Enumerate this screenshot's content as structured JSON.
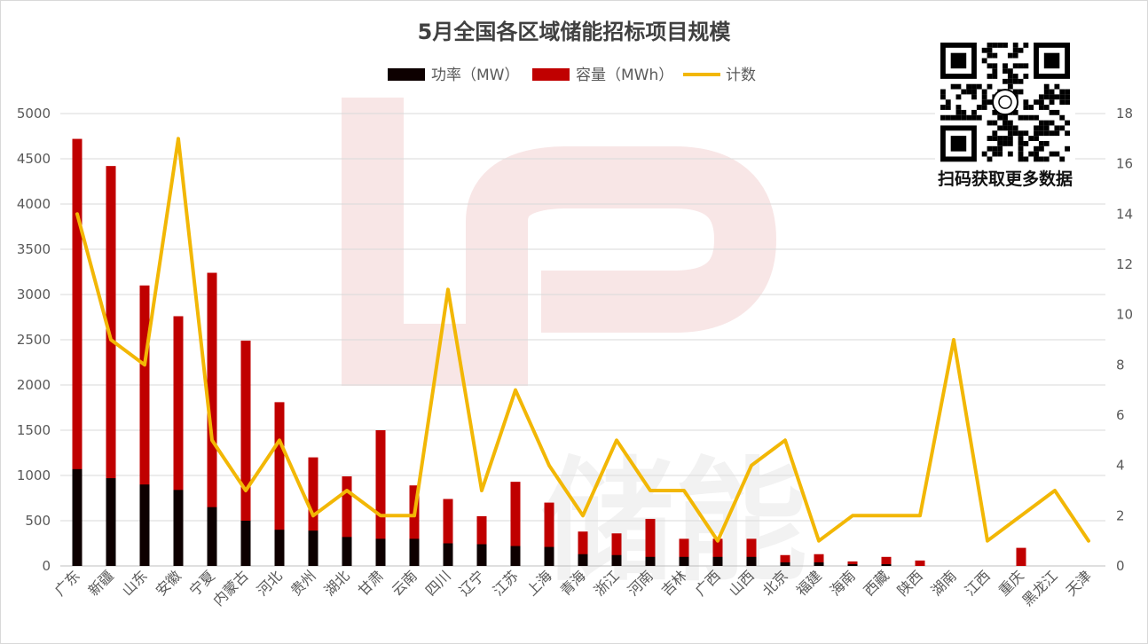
{
  "chart_data": {
    "type": "bar",
    "title": "5月全国各区域储能招标项目规模",
    "categories": [
      "广东",
      "新疆",
      "山东",
      "安徽",
      "宁夏",
      "内蒙古",
      "河北",
      "贵州",
      "湖北",
      "甘肃",
      "云南",
      "四川",
      "辽宁",
      "江苏",
      "上海",
      "青海",
      "浙江",
      "河南",
      "吉林",
      "广西",
      "山西",
      "北京",
      "福建",
      "海南",
      "西藏",
      "陕西",
      "湖南",
      "江西",
      "重庆",
      "黑龙江",
      "天津"
    ],
    "series": [
      {
        "name": "功率（MW）",
        "type": "bar",
        "stacked": true,
        "axis": "left",
        "color": "#0d0000",
        "values": [
          1070,
          970,
          900,
          840,
          650,
          500,
          400,
          390,
          320,
          300,
          300,
          250,
          240,
          220,
          210,
          130,
          120,
          100,
          100,
          100,
          100,
          40,
          40,
          20,
          20,
          0,
          0,
          0,
          0,
          0,
          0
        ]
      },
      {
        "name": "容量（MWh）",
        "type": "bar",
        "stacked": true,
        "axis": "left",
        "color": "#c00000",
        "values": [
          4720,
          4420,
          3100,
          2760,
          3240,
          2490,
          1810,
          1200,
          990,
          1500,
          890,
          740,
          550,
          930,
          700,
          380,
          360,
          520,
          300,
          300,
          300,
          120,
          130,
          50,
          100,
          60,
          0,
          0,
          200,
          0,
          0
        ]
      },
      {
        "name": "计数",
        "type": "line",
        "axis": "right",
        "color": "#f2b705",
        "values": [
          14,
          9,
          8,
          17,
          5,
          3,
          5,
          2,
          3,
          2,
          2,
          11,
          3,
          7,
          4,
          2,
          5,
          3,
          3,
          1,
          4,
          5,
          1,
          2,
          2,
          2,
          9,
          1,
          2,
          3,
          1
        ]
      }
    ],
    "y_left": {
      "min": 0,
      "max": 5000,
      "step": 500,
      "ticks": [
        "0",
        "500",
        "1000",
        "1500",
        "2000",
        "2500",
        "3000",
        "3500",
        "4000",
        "4500",
        "5000"
      ]
    },
    "y_right": {
      "min": 0,
      "max": 18,
      "step": 2,
      "ticks": [
        "0",
        "2",
        "4",
        "6",
        "8",
        "10",
        "12",
        "14",
        "16",
        "18"
      ]
    },
    "legend_position": "top-center",
    "grid": true
  },
  "qr": {
    "caption": "扫码获取更多数据"
  },
  "watermark": {
    "text": "储能"
  }
}
